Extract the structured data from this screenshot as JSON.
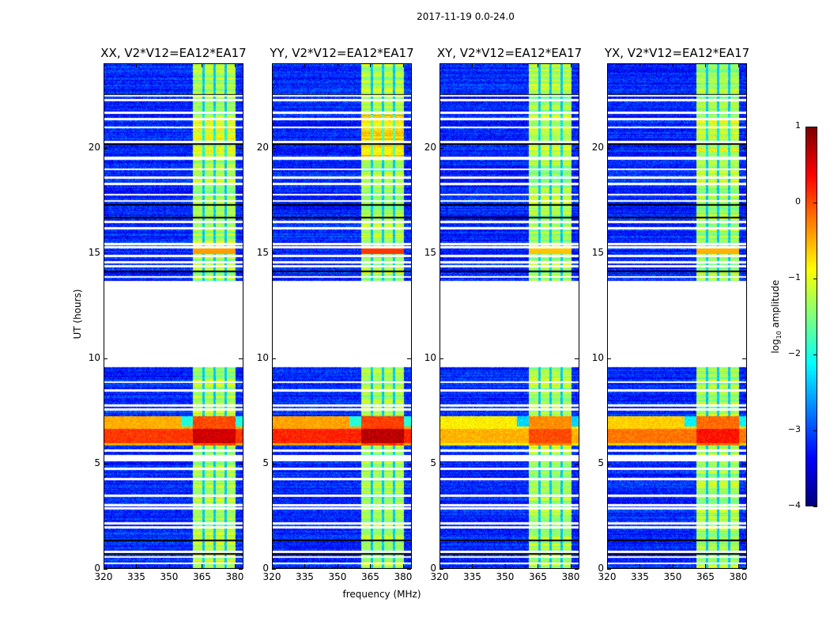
{
  "figure": {
    "suptitle": "2017-11-19 0.0-24.0",
    "xlabel": "frequency (MHz)",
    "ylabel": "UT (hours)"
  },
  "colorbar": {
    "label_prefix": "log",
    "label_sub": "10",
    "label_suffix": " amplitude",
    "ticks": [
      "1",
      "0",
      "−1",
      "−2",
      "−3",
      "−4"
    ],
    "tick_values": [
      1,
      0,
      -1,
      -2,
      -3,
      -4
    ],
    "range": [
      -4,
      1
    ],
    "colormap": "jet"
  },
  "chart_data": {
    "type": "heatmap",
    "title": "2017-11-19 0.0-24.0",
    "xlabel": "frequency (MHz)",
    "ylabel": "UT (hours)",
    "xlim": [
      320,
      384
    ],
    "ylim": [
      0,
      24
    ],
    "xticks": [
      "320",
      "335",
      "350",
      "365",
      "380"
    ],
    "xtick_values": [
      320,
      335,
      350,
      365,
      380
    ],
    "yticks": [
      "0",
      "5",
      "10",
      "15",
      "20"
    ],
    "ytick_values": [
      0,
      5,
      10,
      15,
      20
    ],
    "zlabel": "log10 amplitude",
    "zlim": [
      -4,
      1
    ],
    "panels": [
      {
        "title": "XX, V2*V12=EA12*EA17",
        "event_level": 0.1,
        "upper_band_level": -0.9
      },
      {
        "title": "YY, V2*V12=EA12*EA17",
        "event_level": 0.2,
        "upper_band_level": -0.4
      },
      {
        "title": "XY, V2*V12=EA12*EA17",
        "event_level": -0.5,
        "upper_band_level": -1.1
      },
      {
        "title": "YX, V2*V12=EA12*EA17",
        "event_level": -0.2,
        "upper_band_level": -1.0
      }
    ],
    "background_level": -3.2,
    "rfi_band_mhz": [
      360.5,
      380
    ],
    "rfi_band_level": -1.3,
    "rfi_stripes_mhz": [
      365.5,
      370.5,
      375.5
    ],
    "data_gap_hours": [
      9.6,
      13.7
    ],
    "event_hours": [
      5.9,
      7.3
    ],
    "flagged_hours": [
      0.3,
      0.6,
      0.85,
      2.0,
      2.2,
      2.9,
      3.05,
      3.5,
      4.3,
      4.8,
      5.2,
      5.3,
      5.4,
      5.65,
      7.6,
      7.8,
      8.5,
      8.9,
      13.9,
      14.4,
      14.6,
      14.9,
      15.3,
      15.45,
      16.2,
      16.5,
      17.5,
      17.8,
      18.3,
      18.6,
      19.0,
      19.5,
      19.55,
      20.3,
      21.0,
      21.4,
      21.7,
      22.3,
      22.5
    ],
    "dark_hours": [
      0.75,
      1.4,
      14.15,
      16.7,
      17.3,
      20.2,
      22.55
    ]
  }
}
